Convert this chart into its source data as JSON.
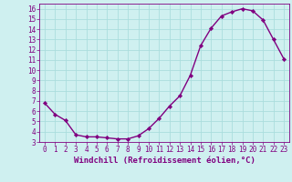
{
  "x": [
    0,
    1,
    2,
    3,
    4,
    5,
    6,
    7,
    8,
    9,
    10,
    11,
    12,
    13,
    14,
    15,
    16,
    17,
    18,
    19,
    20,
    21,
    22,
    23
  ],
  "y": [
    6.8,
    5.7,
    5.1,
    3.7,
    3.5,
    3.5,
    3.4,
    3.3,
    3.3,
    3.6,
    4.3,
    5.3,
    6.5,
    7.5,
    9.5,
    12.4,
    14.1,
    15.3,
    15.7,
    16.0,
    15.8,
    14.9,
    13.0,
    11.1
  ],
  "line_color": "#800080",
  "marker": "D",
  "marker_size": 2.2,
  "background_color": "#cff0f0",
  "grid_color": "#aadddd",
  "xlabel": "Windchill (Refroidissement éolien,°C)",
  "xlim": [
    -0.5,
    23.5
  ],
  "ylim": [
    3,
    16.5
  ],
  "yticks": [
    3,
    4,
    5,
    6,
    7,
    8,
    9,
    10,
    11,
    12,
    13,
    14,
    15,
    16
  ],
  "xticks": [
    0,
    1,
    2,
    3,
    4,
    5,
    6,
    7,
    8,
    9,
    10,
    11,
    12,
    13,
    14,
    15,
    16,
    17,
    18,
    19,
    20,
    21,
    22,
    23
  ],
  "tick_color": "#800080",
  "tick_fontsize": 5.5,
  "xlabel_fontsize": 6.5,
  "line_width": 1.0
}
